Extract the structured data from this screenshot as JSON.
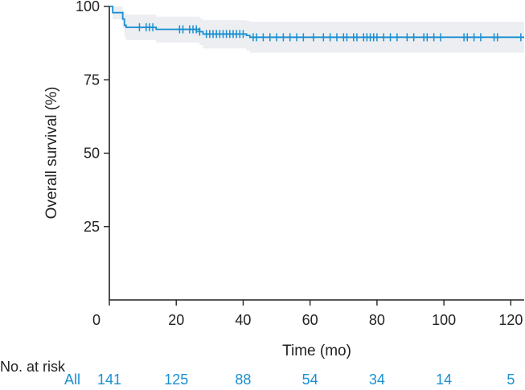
{
  "chart_data": {
    "type": "line",
    "title": "",
    "xlabel": "Time (mo)",
    "ylabel": "Overall survival (%)",
    "xlim": [
      0,
      124
    ],
    "ylim": [
      0,
      100
    ],
    "x_ticks": [
      0,
      20,
      40,
      60,
      80,
      100,
      120
    ],
    "y_ticks": [
      25,
      50,
      75,
      100
    ],
    "grid": false,
    "legend": "none",
    "colors": {
      "curve": "#1a8fd1",
      "band": "#eceef1",
      "axis": "#222222"
    },
    "series": [
      {
        "steps": [
          [
            0,
            100
          ],
          [
            1,
            97.9
          ],
          [
            4,
            95.7
          ],
          [
            4.5,
            93.6
          ],
          [
            5,
            92.9
          ],
          [
            14,
            92.2
          ],
          [
            27,
            91.4
          ],
          [
            28,
            90.6
          ],
          [
            41,
            90.1
          ],
          [
            42,
            89.5
          ],
          [
            124,
            89.5
          ]
        ],
        "ci_steps": [
          [
            0,
            100,
            100
          ],
          [
            1,
            100,
            95.6
          ],
          [
            4,
            98.6,
            92.6
          ],
          [
            4.5,
            97.6,
            89.6
          ],
          [
            5,
            97.2,
            88.5
          ],
          [
            14,
            96.5,
            87.7
          ],
          [
            27,
            95.9,
            86.9
          ],
          [
            28,
            95.3,
            85.7
          ],
          [
            41,
            95.1,
            85.0
          ],
          [
            42,
            94.8,
            84.2
          ],
          [
            124,
            94.8,
            84.2
          ]
        ],
        "censor_times": [
          9,
          11,
          12,
          13,
          21,
          22,
          24,
          25,
          26,
          27,
          29,
          30,
          31,
          32,
          33,
          34,
          35,
          36,
          37,
          38,
          39,
          40,
          43,
          44,
          46,
          48,
          50,
          52,
          54,
          56,
          58,
          61,
          64,
          66,
          68,
          70,
          71,
          73,
          74,
          76,
          77,
          78,
          79,
          80,
          82,
          84,
          86,
          89,
          91,
          94,
          95,
          97,
          99,
          106,
          107,
          109,
          111,
          115,
          116,
          123
        ]
      }
    ],
    "risk_table": {
      "title": "No. at risk",
      "group": "All",
      "times": [
        0,
        20,
        40,
        60,
        80,
        100,
        120
      ],
      "values": [
        "141",
        "125",
        "88",
        "54",
        "34",
        "14",
        "5"
      ]
    }
  }
}
